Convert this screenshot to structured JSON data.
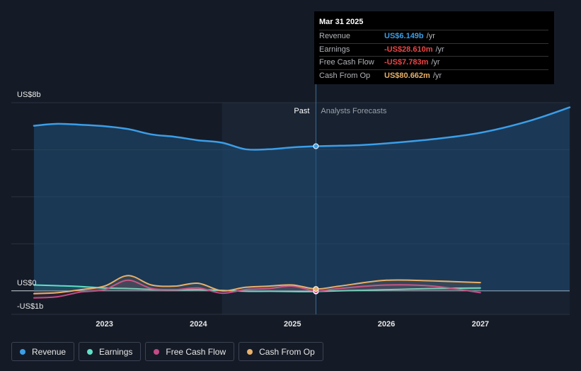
{
  "tooltip": {
    "date": "Mar 31 2025",
    "rows": [
      {
        "label": "Revenue",
        "value": "US$6.149b",
        "unit": "/yr",
        "color": "#3b9ee8"
      },
      {
        "label": "Earnings",
        "value": "-US$28.610m",
        "unit": "/yr",
        "color": "#ef4444"
      },
      {
        "label": "Free Cash Flow",
        "value": "-US$7.783m",
        "unit": "/yr",
        "color": "#ef4444"
      },
      {
        "label": "Cash From Op",
        "value": "US$80.662m",
        "unit": "/yr",
        "color": "#e8b06a"
      }
    ]
  },
  "legend": [
    {
      "label": "Revenue",
      "color": "#3b9ee8"
    },
    {
      "label": "Earnings",
      "color": "#5ee0c8"
    },
    {
      "label": "Free Cash Flow",
      "color": "#c44a87"
    },
    {
      "label": "Cash From Op",
      "color": "#e8b06a"
    }
  ],
  "chart_data": {
    "type": "line",
    "y_top_label": "US$8b",
    "y_zero_label": "US$0",
    "y_bottom_label": "-US$1b",
    "ylim": [
      -1,
      8
    ],
    "xlim": [
      2022.25,
      2027.95
    ],
    "divider_x": 2025.25,
    "past_label": "Past",
    "forecast_label": "Analysts Forecasts",
    "x_ticks": [
      {
        "value": 2023,
        "label": "2023"
      },
      {
        "value": 2024,
        "label": "2024"
      },
      {
        "value": 2025,
        "label": "2025"
      },
      {
        "value": 2026,
        "label": "2026"
      },
      {
        "value": 2027,
        "label": "2027"
      }
    ],
    "series": [
      {
        "name": "Revenue",
        "color": "#3b9ee8",
        "area": true,
        "points": [
          [
            2022.25,
            7.02
          ],
          [
            2022.5,
            7.1
          ],
          [
            2022.75,
            7.06
          ],
          [
            2023.0,
            7.0
          ],
          [
            2023.25,
            6.88
          ],
          [
            2023.5,
            6.65
          ],
          [
            2023.75,
            6.55
          ],
          [
            2024.0,
            6.4
          ],
          [
            2024.25,
            6.3
          ],
          [
            2024.5,
            6.02
          ],
          [
            2024.75,
            6.02
          ],
          [
            2025.0,
            6.1
          ],
          [
            2025.25,
            6.149
          ],
          [
            2025.5,
            6.17
          ],
          [
            2025.75,
            6.2
          ],
          [
            2026.0,
            6.27
          ],
          [
            2026.5,
            6.45
          ],
          [
            2027.0,
            6.72
          ],
          [
            2027.5,
            7.2
          ],
          [
            2027.95,
            7.8
          ]
        ]
      },
      {
        "name": "Earnings",
        "color": "#5ee0c8",
        "area": false,
        "points": [
          [
            2022.25,
            0.25
          ],
          [
            2022.5,
            0.22
          ],
          [
            2022.75,
            0.18
          ],
          [
            2023.0,
            0.12
          ],
          [
            2023.25,
            0.1
          ],
          [
            2023.5,
            0.06
          ],
          [
            2023.75,
            0.04
          ],
          [
            2024.0,
            0.05
          ],
          [
            2024.25,
            0.02
          ],
          [
            2024.5,
            -0.02
          ],
          [
            2024.75,
            -0.02
          ],
          [
            2025.0,
            -0.03
          ],
          [
            2025.25,
            -0.0286
          ],
          [
            2025.5,
            0.0
          ],
          [
            2026.0,
            0.05
          ],
          [
            2026.5,
            0.1
          ],
          [
            2027.0,
            0.12
          ]
        ]
      },
      {
        "name": "Free Cash Flow",
        "color": "#c44a87",
        "area": false,
        "points": [
          [
            2022.25,
            -0.3
          ],
          [
            2022.5,
            -0.25
          ],
          [
            2022.75,
            -0.05
          ],
          [
            2023.0,
            0.05
          ],
          [
            2023.25,
            0.45
          ],
          [
            2023.5,
            0.1
          ],
          [
            2023.75,
            0.05
          ],
          [
            2024.0,
            0.12
          ],
          [
            2024.25,
            -0.1
          ],
          [
            2024.5,
            0.05
          ],
          [
            2024.75,
            0.1
          ],
          [
            2025.0,
            0.2
          ],
          [
            2025.25,
            -0.0078
          ],
          [
            2025.5,
            0.1
          ],
          [
            2026.0,
            0.25
          ],
          [
            2026.5,
            0.2
          ],
          [
            2027.0,
            -0.08
          ]
        ]
      },
      {
        "name": "Cash From Op",
        "color": "#e8b06a",
        "area": false,
        "points": [
          [
            2022.25,
            -0.12
          ],
          [
            2022.5,
            -0.08
          ],
          [
            2022.75,
            0.05
          ],
          [
            2023.0,
            0.2
          ],
          [
            2023.25,
            0.65
          ],
          [
            2023.5,
            0.25
          ],
          [
            2023.75,
            0.2
          ],
          [
            2024.0,
            0.32
          ],
          [
            2024.25,
            0.0
          ],
          [
            2024.5,
            0.15
          ],
          [
            2024.75,
            0.2
          ],
          [
            2025.0,
            0.25
          ],
          [
            2025.25,
            0.0807
          ],
          [
            2025.5,
            0.2
          ],
          [
            2026.0,
            0.45
          ],
          [
            2026.5,
            0.42
          ],
          [
            2027.0,
            0.35
          ]
        ]
      }
    ]
  }
}
